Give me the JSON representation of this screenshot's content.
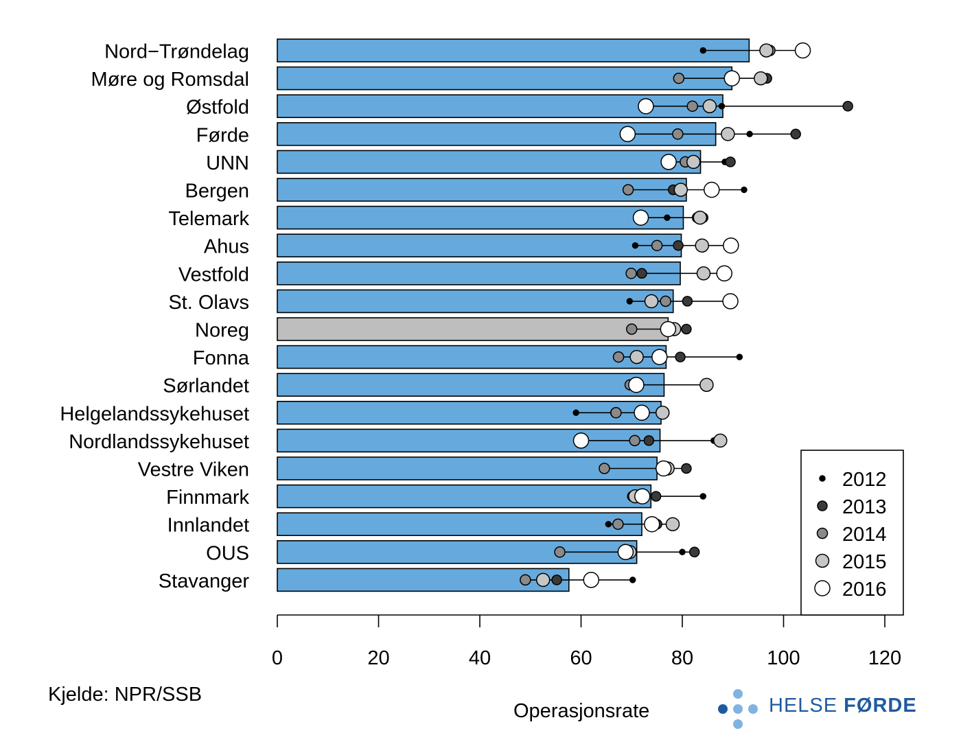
{
  "chart_data": {
    "type": "bar",
    "xlabel": "Operasjonsrate",
    "xlim": [
      0,
      120
    ],
    "xticks": [
      0,
      20,
      40,
      60,
      80,
      100,
      120
    ],
    "bar_color": "#66aadd",
    "highlight_color": "#bebebe",
    "highlight_category": "Noreg",
    "categories": [
      "Nord−Trøndelag",
      "Møre og Romsdal",
      "Østfold",
      "Førde",
      "UNN",
      "Bergen",
      "Telemark",
      "Ahus",
      "Vestfold",
      "St. Olavs",
      "Noreg",
      "Fonna",
      "Sørlandet",
      "Helgelandssykehuset",
      "Nordlandssykehuset",
      "Vestre Viken",
      "Finnmark",
      "Innlandet",
      "OUS",
      "Stavanger"
    ],
    "values": [
      93.2,
      89.8,
      88.0,
      86.6,
      83.6,
      80.8,
      80.2,
      79.8,
      79.6,
      78.2,
      77.2,
      76.8,
      76.4,
      75.8,
      75.6,
      75.0,
      73.8,
      72.0,
      71.0,
      57.6
    ],
    "series": [
      {
        "name": "2012",
        "values": [
          84.1,
          89.1,
          87.8,
          93.3,
          88.4,
          92.2,
          77.0,
          70.7,
          84.1,
          69.6,
          79.0,
          91.3,
          85.1,
          59.0,
          86.2,
          76.4,
          84.1,
          65.4,
          80.0,
          70.2
        ]
      },
      {
        "name": "2013",
        "values": [
          96.5,
          96.7,
          112.7,
          102.4,
          89.5,
          78.2,
          84.1,
          79.2,
          72.0,
          81.0,
          80.8,
          79.6,
          71.2,
          66.8,
          73.4,
          80.8,
          74.8,
          75.0,
          82.4,
          55.2
        ]
      },
      {
        "name": "2014",
        "values": [
          97.3,
          79.3,
          82.0,
          79.1,
          80.6,
          69.3,
          83.0,
          75.0,
          69.9,
          76.7,
          70.0,
          67.4,
          69.7,
          66.9,
          70.6,
          64.6,
          70.2,
          67.3,
          55.8,
          49.0
        ]
      },
      {
        "name": "2015",
        "values": [
          96.6,
          95.5,
          85.4,
          89.0,
          82.2,
          79.7,
          83.5,
          83.9,
          84.2,
          73.9,
          78.4,
          71.0,
          84.8,
          76.1,
          87.5,
          77.1,
          70.7,
          78.1,
          69.6,
          52.5
        ]
      },
      {
        "name": "2016",
        "values": [
          103.8,
          89.8,
          72.8,
          69.2,
          77.3,
          85.8,
          71.8,
          89.6,
          88.3,
          89.5,
          77.2,
          75.5,
          70.9,
          72.0,
          60.0,
          76.3,
          72.1,
          74.0,
          68.8,
          62.0
        ]
      }
    ],
    "legend_position": "bottom-right"
  },
  "source_label": "Kjelde: NPR/SSB",
  "logo": {
    "text_regular": "HELSE ",
    "text_bold": "FØRDE",
    "color": "#1f5aa0",
    "dot_light": "#7fb4e2",
    "dot_dark": "#1f5aa0"
  }
}
